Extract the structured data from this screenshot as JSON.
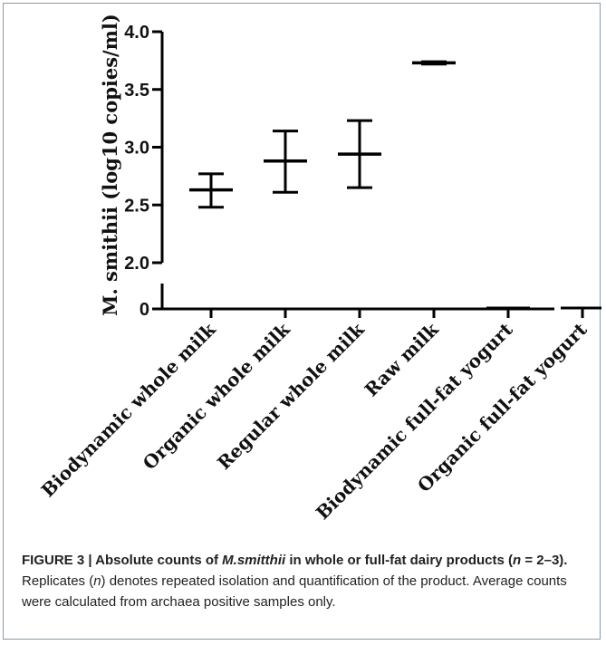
{
  "chart_data": {
    "type": "scatter",
    "title": "",
    "ylabel": "M. smithii (log10 copies/ml)",
    "xlabel": "",
    "categories": [
      "Biodynamic whole milk",
      "Organic whole milk",
      "Regular whole milk",
      "Raw milk",
      "Biodynamic full-fat yogurt",
      "Organic full-fat yogurt"
    ],
    "mean": [
      2.63,
      2.88,
      2.94,
      3.73,
      0,
      0
    ],
    "upper": [
      2.77,
      3.14,
      3.23,
      3.74,
      0,
      0
    ],
    "lower": [
      2.48,
      2.61,
      2.65,
      3.72,
      0,
      0
    ],
    "yticks_upper": [
      "2.0",
      "2.5",
      "3.0",
      "3.5",
      "4.0"
    ],
    "yticks_lower": [
      "0"
    ],
    "ylim_upper": [
      2.0,
      4.0
    ],
    "ylim_lower": [
      0,
      0
    ],
    "axis_break": true,
    "grid": false
  },
  "caption": {
    "figure_label": "FIGURE 3 | ",
    "bold_title_pre": "Absolute counts of ",
    "bold_title_species": "M.smitthii",
    "bold_title_post": " in whole or full-fat dairy products (",
    "bold_n": "n",
    "bold_range": " = 2–3).",
    "body_pre": " Replicates (",
    "body_n": "n",
    "body_post": ") denotes repeated isolation and quantification of the product. Average counts were calculated from archaea positive samples only."
  }
}
